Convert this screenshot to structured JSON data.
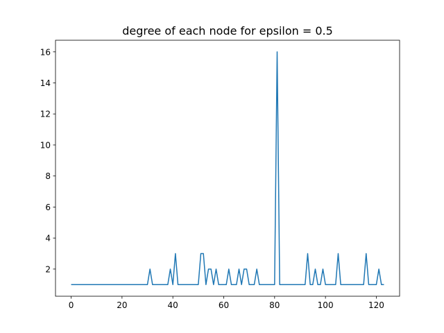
{
  "chart_data": {
    "type": "line",
    "title": "degree of each node for epsilon = 0.5",
    "xlabel": "",
    "ylabel": "",
    "xlim": [
      -6.15,
      129.15
    ],
    "ylim": [
      0.25,
      16.75
    ],
    "xticks": [
      0,
      20,
      40,
      60,
      80,
      100,
      120
    ],
    "yticks": [
      2,
      4,
      6,
      8,
      10,
      12,
      14,
      16
    ],
    "grid": false,
    "series": [
      {
        "color": "#1f77b4",
        "x": [
          0,
          1,
          2,
          3,
          4,
          5,
          6,
          7,
          8,
          9,
          10,
          11,
          12,
          13,
          14,
          15,
          16,
          17,
          18,
          19,
          20,
          21,
          22,
          23,
          24,
          25,
          26,
          27,
          28,
          29,
          30,
          31,
          32,
          33,
          34,
          35,
          36,
          37,
          38,
          39,
          40,
          41,
          42,
          43,
          44,
          45,
          46,
          47,
          48,
          49,
          50,
          51,
          52,
          53,
          54,
          55,
          56,
          57,
          58,
          59,
          60,
          61,
          62,
          63,
          64,
          65,
          66,
          67,
          68,
          69,
          70,
          71,
          72,
          73,
          74,
          75,
          76,
          77,
          78,
          79,
          80,
          81,
          82,
          83,
          84,
          85,
          86,
          87,
          88,
          89,
          90,
          91,
          92,
          93,
          94,
          95,
          96,
          97,
          98,
          99,
          100,
          101,
          102,
          103,
          104,
          105,
          106,
          107,
          108,
          109,
          110,
          111,
          112,
          113,
          114,
          115,
          116,
          117,
          118,
          119,
          120,
          121,
          122,
          123
        ],
        "values": [
          1,
          1,
          1,
          1,
          1,
          1,
          1,
          1,
          1,
          1,
          1,
          1,
          1,
          1,
          1,
          1,
          1,
          1,
          1,
          1,
          1,
          1,
          1,
          1,
          1,
          1,
          1,
          1,
          1,
          1,
          1,
          2,
          1,
          1,
          1,
          1,
          1,
          1,
          1,
          2,
          1,
          3,
          1,
          1,
          1,
          1,
          1,
          1,
          1,
          1,
          1,
          3,
          3,
          1,
          2,
          2,
          1,
          2,
          1,
          1,
          1,
          1,
          2,
          1,
          1,
          1,
          2,
          1,
          2,
          2,
          1,
          1,
          1,
          2,
          1,
          1,
          1,
          1,
          1,
          1,
          1,
          16,
          1,
          1,
          1,
          1,
          1,
          1,
          1,
          1,
          1,
          1,
          1,
          3,
          1,
          1,
          2,
          1,
          1,
          2,
          1,
          1,
          1,
          1,
          1,
          3,
          1,
          1,
          1,
          1,
          1,
          1,
          1,
          1,
          1,
          1,
          3,
          1,
          1,
          1,
          1,
          2,
          1,
          1
        ]
      }
    ]
  }
}
